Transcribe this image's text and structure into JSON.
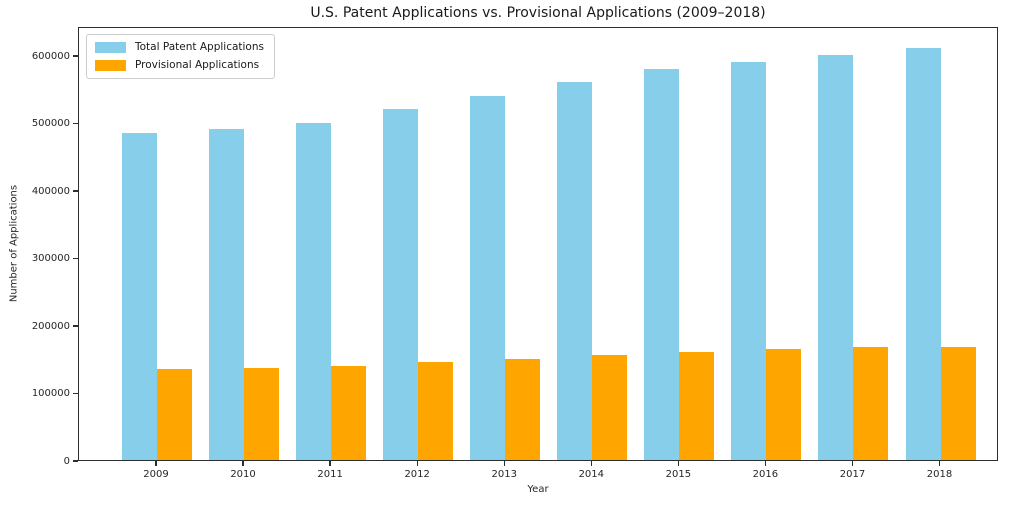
{
  "figure": {
    "background": "#ffffff"
  },
  "chart_data": {
    "type": "bar",
    "title": "U.S. Patent Applications vs. Provisional Applications (2009–2018)",
    "xlabel": "Year",
    "ylabel": "Number of Applications",
    "categories": [
      "2009",
      "2010",
      "2011",
      "2012",
      "2013",
      "2014",
      "2015",
      "2016",
      "2017",
      "2018"
    ],
    "series": [
      {
        "name": "Total Patent Applications",
        "color": "#87CEEB",
        "values": [
          485000,
          490000,
          500000,
          520000,
          540000,
          560000,
          580000,
          590000,
          600000,
          610000
        ]
      },
      {
        "name": "Provisional Applications",
        "color": "#FFA500",
        "values": [
          135000,
          137000,
          140000,
          145000,
          150000,
          155000,
          160000,
          165000,
          167000,
          168000
        ]
      }
    ],
    "ylim": [
      0,
      643000
    ],
    "yticks": [
      0,
      100000,
      200000,
      300000,
      400000,
      500000,
      600000
    ],
    "grid": false,
    "legend_position": "upper left",
    "axis_color": "#2e2e2e",
    "text_color": "#262626"
  }
}
